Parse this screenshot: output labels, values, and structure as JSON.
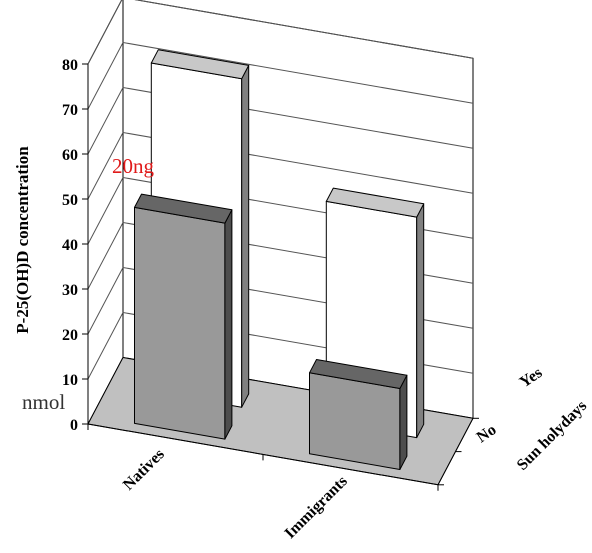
{
  "chart_data": {
    "type": "bar",
    "categories": [
      "Natives",
      "Immigrants"
    ],
    "series": [
      {
        "name": "Yes",
        "values": [
          73,
          49
        ]
      },
      {
        "name": "No",
        "values": [
          48,
          18
        ]
      }
    ],
    "ylabel": "P-25(OH)D concentration",
    "zlabel": "Sun holydays",
    "ylim": [
      0,
      80
    ],
    "yticks": [
      "0",
      "10",
      "20",
      "30",
      "40",
      "50",
      "60",
      "70",
      "80"
    ],
    "annotations": {
      "top": "20ng",
      "bottom": "nmol"
    },
    "grid": true,
    "colors": {
      "yes_front": "#ffffff",
      "yes_side": "#808080",
      "yes_top": "#c8c8c8",
      "no_front": "#999999",
      "no_side": "#4d4d4d",
      "no_top": "#666666",
      "floor": "#c0c0c0",
      "walls": "#ffffff"
    }
  }
}
